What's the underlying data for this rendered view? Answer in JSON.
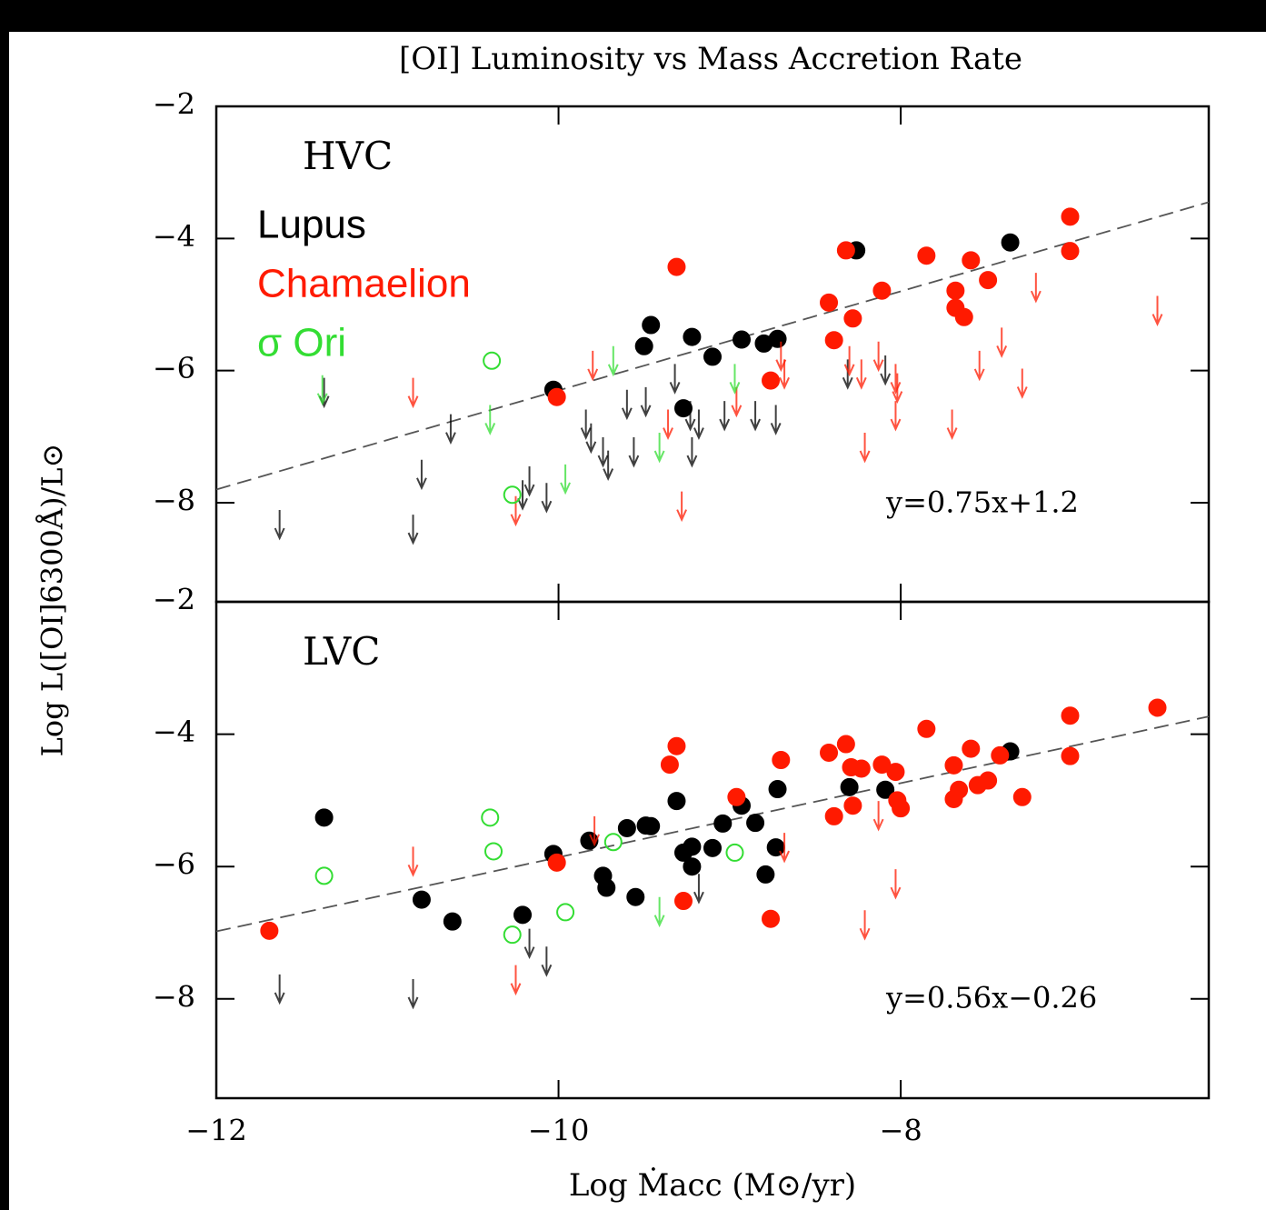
{
  "title": "[OI] Luminosity vs Mass Accretion Rate",
  "ylabel": "Log L([OI]6300Å)/L⊙",
  "chart_data": [
    {
      "type": "scatter",
      "label": "HVC",
      "xlim": [
        -12,
        -6.2
      ],
      "ylim": [
        -9.5,
        -2
      ],
      "xticks": [
        {
          "value": -12,
          "label": "−12"
        },
        {
          "value": -10,
          "label": "−10"
        },
        {
          "value": -8,
          "label": "−8"
        }
      ],
      "yticks": [
        {
          "value": -8,
          "label": "−8"
        },
        {
          "value": -6,
          "label": "−6"
        },
        {
          "value": -4,
          "label": "−4"
        },
        {
          "value": -2,
          "label": "−2"
        }
      ],
      "fit": {
        "slope": 0.75,
        "intercept": 1.2,
        "label": "y=0.75x+1.2"
      },
      "series": [
        {
          "name": "Lupus",
          "color": "#000000",
          "marker": "filled",
          "x": [
            -10.03,
            -9.5,
            -9.46,
            -9.22,
            -9.1,
            -8.93,
            -8.8,
            -8.72,
            -9.27,
            -8.26,
            -7.36
          ],
          "y": [
            -6.29,
            -5.63,
            -5.31,
            -5.49,
            -5.79,
            -5.53,
            -5.59,
            -5.52,
            -6.57,
            -4.18,
            -4.06
          ],
          "limit_x": [
            -11.37,
            -11.63,
            -10.85,
            -10.8,
            -10.63,
            -10.17,
            -10.21,
            -10.07,
            -9.84,
            -9.81,
            -9.74,
            -9.71,
            -9.6,
            -9.49,
            -9.56,
            -9.32,
            -9.23,
            -9.22,
            -9.18,
            -9.03,
            -8.85,
            -8.73,
            -8.31,
            -8.09
          ],
          "limit_y": [
            -6.11,
            -8.11,
            -8.18,
            -7.35,
            -6.66,
            -7.45,
            -7.66,
            -7.7,
            -6.59,
            -6.8,
            -7.01,
            -7.21,
            -6.29,
            -6.25,
            -7.01,
            -5.9,
            -6.46,
            -7.01,
            -6.59,
            -6.46,
            -6.46,
            -6.52,
            -5.83,
            -5.77
          ]
        },
        {
          "name": "Chamaelion",
          "color": "#ff1a00",
          "marker": "filled",
          "x": [
            -9.31,
            -10.01,
            -8.76,
            -8.32,
            -8.42,
            -8.28,
            -8.39,
            -8.11,
            -7.85,
            -7.59,
            -7.68,
            -7.68,
            -7.63,
            -7.49,
            -7.01,
            -7.01
          ],
          "y": [
            -4.43,
            -6.4,
            -6.15,
            -4.18,
            -4.97,
            -5.21,
            -5.54,
            -4.79,
            -4.26,
            -4.33,
            -4.79,
            -5.05,
            -5.19,
            -4.63,
            -3.67,
            -4.19
          ],
          "limit_x": [
            -10.85,
            -10.25,
            -9.8,
            -9.36,
            -9.28,
            -8.96,
            -8.7,
            -8.68,
            -8.3,
            -8.23,
            -8.21,
            -8.13,
            -8.03,
            -8.02,
            -8.03,
            -7.7,
            -7.54,
            -7.41,
            -7.29,
            -7.21,
            -6.5
          ],
          "limit_y": [
            -6.11,
            -7.9,
            -5.7,
            -6.59,
            -7.83,
            -6.25,
            -5.56,
            -5.83,
            -5.63,
            -5.83,
            -6.94,
            -5.56,
            -5.9,
            -6.04,
            -6.46,
            -6.59,
            -5.7,
            -5.35,
            -5.97,
            -4.52,
            -4.87
          ]
        },
        {
          "name": "σ Ori",
          "color": "#33dd33",
          "marker": "open",
          "x": [
            -10.39,
            -10.27
          ],
          "y": [
            -5.85,
            -7.88
          ],
          "limit_x": [
            -11.38,
            -10.4,
            -9.96,
            -9.68,
            -9.41,
            -8.97
          ],
          "limit_y": [
            -6.07,
            -6.52,
            -7.42,
            -5.63,
            -6.94,
            -5.9
          ]
        }
      ]
    },
    {
      "type": "scatter",
      "label": "LVC",
      "xlabel": "Log Ṁacc (M⊙/yr)",
      "xlim": [
        -12,
        -6.2
      ],
      "ylim": [
        -9.5,
        -2
      ],
      "xticks": [
        {
          "value": -12,
          "label": "−12"
        },
        {
          "value": -10,
          "label": "−10"
        },
        {
          "value": -8,
          "label": "−8"
        }
      ],
      "yticks": [
        {
          "value": -8,
          "label": "−8"
        },
        {
          "value": -6,
          "label": "−6"
        },
        {
          "value": -4,
          "label": "−4"
        },
        {
          "value": -2,
          "label": "−2"
        }
      ],
      "fit": {
        "slope": 0.56,
        "intercept": -0.26,
        "label": "y=0.56x−0.26"
      },
      "series": [
        {
          "color": "#000000",
          "marker": "filled",
          "x": [
            -11.37,
            -10.8,
            -10.62,
            -10.21,
            -10.03,
            -9.82,
            -9.74,
            -9.72,
            -9.6,
            -9.55,
            -9.49,
            -9.46,
            -9.31,
            -9.27,
            -9.22,
            -9.22,
            -9.1,
            -9.04,
            -8.93,
            -8.85,
            -8.79,
            -8.72,
            -8.73,
            -8.3,
            -8.09,
            -7.36
          ],
          "y": [
            -5.26,
            -6.5,
            -6.83,
            -6.73,
            -5.81,
            -5.61,
            -6.14,
            -6.32,
            -5.42,
            -6.46,
            -5.38,
            -5.39,
            -5.01,
            -5.79,
            -5.7,
            -6.0,
            -5.72,
            -5.35,
            -5.08,
            -5.34,
            -6.12,
            -4.83,
            -5.71,
            -4.8,
            -4.84,
            -4.26
          ],
          "limit_x": [
            -11.63,
            -10.85,
            -10.17,
            -10.07,
            -9.18
          ],
          "limit_y": [
            -7.63,
            -7.7,
            -6.94,
            -7.21,
            -6.11
          ]
        },
        {
          "color": "#ff1a00",
          "marker": "filled",
          "x": [
            -11.69,
            -10.01,
            -9.35,
            -9.31,
            -9.27,
            -8.96,
            -8.76,
            -8.7,
            -8.42,
            -8.39,
            -8.32,
            -8.29,
            -8.28,
            -8.23,
            -8.11,
            -8.03,
            -8.02,
            -8.0,
            -7.85,
            -7.69,
            -7.69,
            -7.66,
            -7.59,
            -7.55,
            -7.49,
            -7.42,
            -7.29,
            -7.01,
            -7.01,
            -6.5
          ],
          "y": [
            -6.97,
            -5.94,
            -4.46,
            -4.18,
            -6.52,
            -4.95,
            -6.79,
            -4.39,
            -4.28,
            -5.24,
            -4.15,
            -4.5,
            -5.08,
            -4.52,
            -4.46,
            -4.57,
            -5.0,
            -5.12,
            -3.92,
            -4.47,
            -4.98,
            -4.84,
            -4.22,
            -4.77,
            -4.7,
            -4.32,
            -4.95,
            -3.72,
            -4.33,
            -3.6
          ],
          "limit_x": [
            -10.85,
            -10.25,
            -9.79,
            -8.68,
            -8.13,
            -8.21,
            -8.03
          ],
          "limit_y": [
            -5.7,
            -7.49,
            -5.24,
            -5.49,
            -5.01,
            -6.66,
            -6.04
          ]
        },
        {
          "color": "#33dd33",
          "marker": "open",
          "x": [
            -11.37,
            -10.4,
            -10.38,
            -10.27,
            -9.96,
            -9.68,
            -8.97
          ],
          "y": [
            -6.14,
            -5.26,
            -5.77,
            -7.03,
            -6.69,
            -5.63,
            -5.79
          ],
          "limit_x": [
            -9.41
          ],
          "limit_y": [
            -6.46
          ]
        }
      ]
    }
  ]
}
